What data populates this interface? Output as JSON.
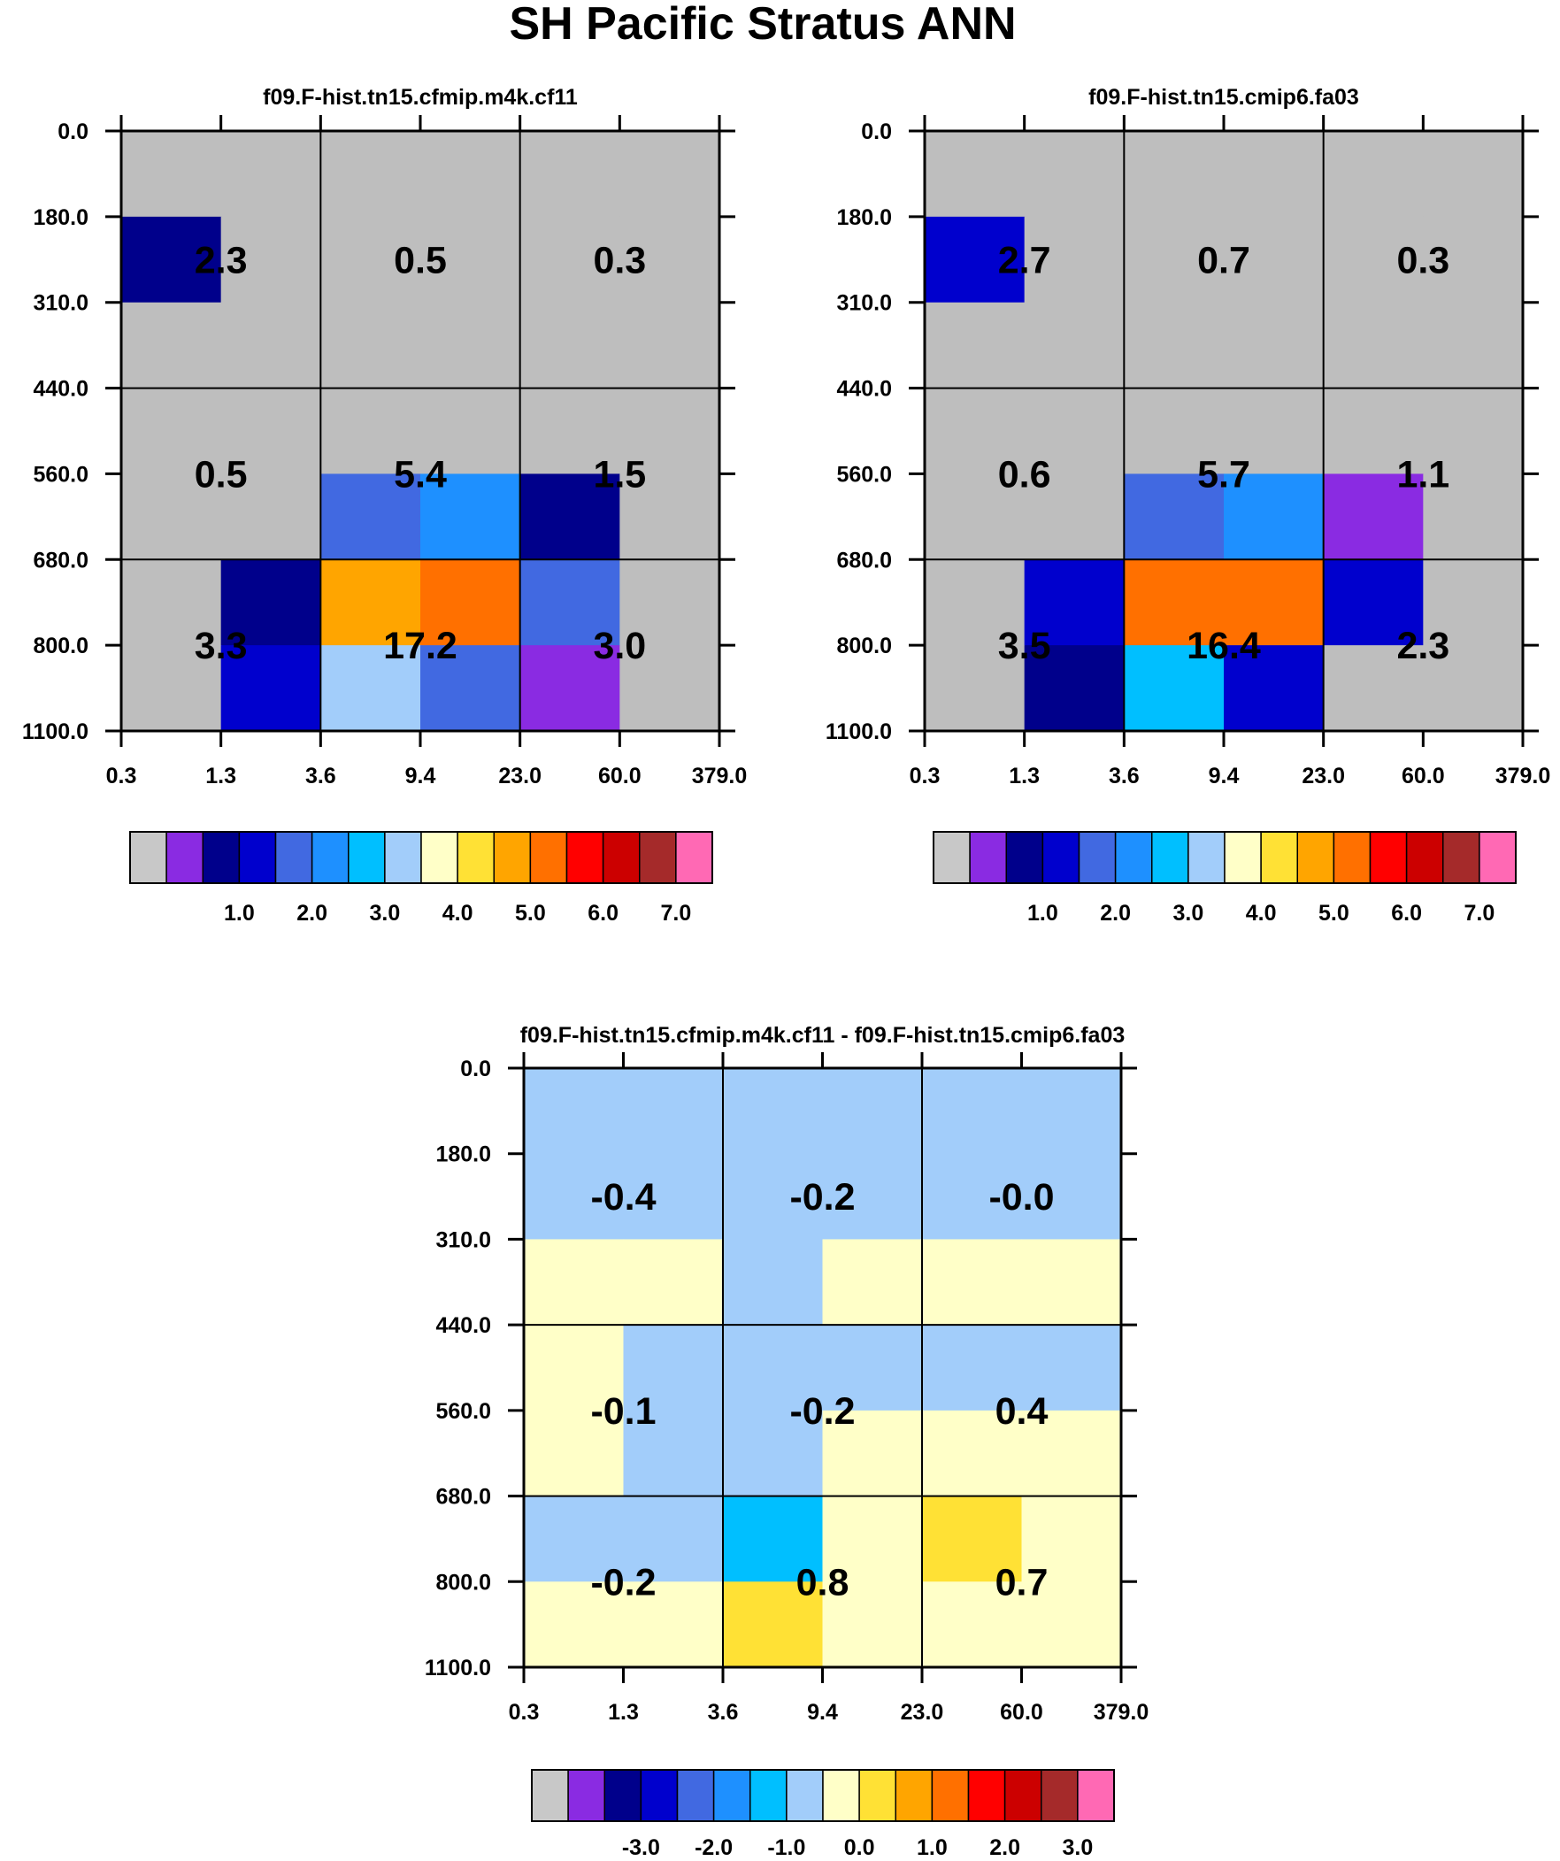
{
  "figure": {
    "title": "SH Pacific Stratus ANN"
  },
  "chart_data": [
    {
      "type": "heatmap",
      "title": "f09.F-hist.tn15.cfmip.m4k.cf11",
      "x_tick_labels": [
        "0.3",
        "1.3",
        "3.6",
        "9.4",
        "23.0",
        "60.0",
        "379.0"
      ],
      "y_tick_labels": [
        "0.0",
        "180.0",
        "310.0",
        "440.0",
        "560.0",
        "680.0",
        "800.0",
        "1100.0"
      ],
      "cell_color_index": [
        [
          0,
          0,
          0,
          0,
          0,
          0
        ],
        [
          2,
          0,
          0,
          0,
          0,
          0
        ],
        [
          0,
          0,
          0,
          0,
          0,
          0
        ],
        [
          0,
          0,
          0,
          0,
          0,
          0
        ],
        [
          0,
          0,
          4,
          5,
          2,
          0
        ],
        [
          0,
          2,
          10,
          11,
          4,
          0
        ],
        [
          0,
          3,
          7,
          4,
          1,
          0
        ]
      ],
      "box_values": [
        [
          "2.3",
          "0.5",
          "0.3"
        ],
        [
          "0.5",
          "5.4",
          "1.5"
        ],
        [
          "3.3",
          "17.2",
          "3.0"
        ]
      ],
      "colorbar_labels": [
        "1.0",
        "2.0",
        "3.0",
        "4.0",
        "5.0",
        "6.0",
        "7.0"
      ]
    },
    {
      "type": "heatmap",
      "title": "f09.F-hist.tn15.cmip6.fa03",
      "x_tick_labels": [
        "0.3",
        "1.3",
        "3.6",
        "9.4",
        "23.0",
        "60.0",
        "379.0"
      ],
      "y_tick_labels": [
        "0.0",
        "180.0",
        "310.0",
        "440.0",
        "560.0",
        "680.0",
        "800.0",
        "1100.0"
      ],
      "cell_color_index": [
        [
          0,
          0,
          0,
          0,
          0,
          0
        ],
        [
          3,
          0,
          0,
          0,
          0,
          0
        ],
        [
          0,
          0,
          0,
          0,
          0,
          0
        ],
        [
          0,
          0,
          0,
          0,
          0,
          0
        ],
        [
          0,
          0,
          4,
          5,
          1,
          0
        ],
        [
          0,
          3,
          11,
          11,
          3,
          0
        ],
        [
          0,
          2,
          6,
          3,
          0,
          0
        ]
      ],
      "box_values": [
        [
          "2.7",
          "0.7",
          "0.3"
        ],
        [
          "0.6",
          "5.7",
          "1.1"
        ],
        [
          "3.5",
          "16.4",
          "2.3"
        ]
      ],
      "colorbar_labels": [
        "1.0",
        "2.0",
        "3.0",
        "4.0",
        "5.0",
        "6.0",
        "7.0"
      ]
    },
    {
      "type": "heatmap",
      "title": "f09.F-hist.tn15.cfmip.m4k.cf11 - f09.F-hist.tn15.cmip6.fa03",
      "x_tick_labels": [
        "0.3",
        "1.3",
        "3.6",
        "9.4",
        "23.0",
        "60.0",
        "379.0"
      ],
      "y_tick_labels": [
        "0.0",
        "180.0",
        "310.0",
        "440.0",
        "560.0",
        "680.0",
        "800.0",
        "1100.0"
      ],
      "cell_color_index": [
        [
          7,
          7,
          7,
          7,
          7,
          7
        ],
        [
          7,
          7,
          7,
          7,
          7,
          7
        ],
        [
          8,
          8,
          7,
          8,
          8,
          8
        ],
        [
          8,
          7,
          7,
          7,
          7,
          7
        ],
        [
          8,
          7,
          7,
          8,
          8,
          8
        ],
        [
          7,
          7,
          6,
          8,
          9,
          8
        ],
        [
          8,
          8,
          9,
          8,
          8,
          8
        ]
      ],
      "box_values": [
        [
          "-0.4",
          "-0.2",
          "-0.0"
        ],
        [
          "-0.1",
          "-0.2",
          "0.4"
        ],
        [
          "-0.2",
          "0.8",
          "0.7"
        ]
      ],
      "colorbar_labels": [
        "-3.0",
        "-2.0",
        "-1.0",
        "0.0",
        "1.0",
        "2.0",
        "3.0"
      ]
    }
  ],
  "colors": {
    "palette": [
      "#bebebe",
      "#8a2be2",
      "#00008b",
      "#0000cd",
      "#4169e1",
      "#1e90ff",
      "#00bfff",
      "#a2cdfa",
      "#ffffc8",
      "#ffe135",
      "#ffa500",
      "#ff7000",
      "#ff0000",
      "#cc0000",
      "#a52a2a",
      "#ff69b4"
    ],
    "colorbar_swatches": [
      "#c8c8c8",
      "#8a2be2",
      "#00008b",
      "#0000cd",
      "#4169e1",
      "#1e90ff",
      "#00bfff",
      "#a2cdfa",
      "#ffffc8",
      "#ffe135",
      "#ffa500",
      "#ff7000",
      "#ff0000",
      "#cc0000",
      "#a52a2a",
      "#ff69b4"
    ]
  }
}
